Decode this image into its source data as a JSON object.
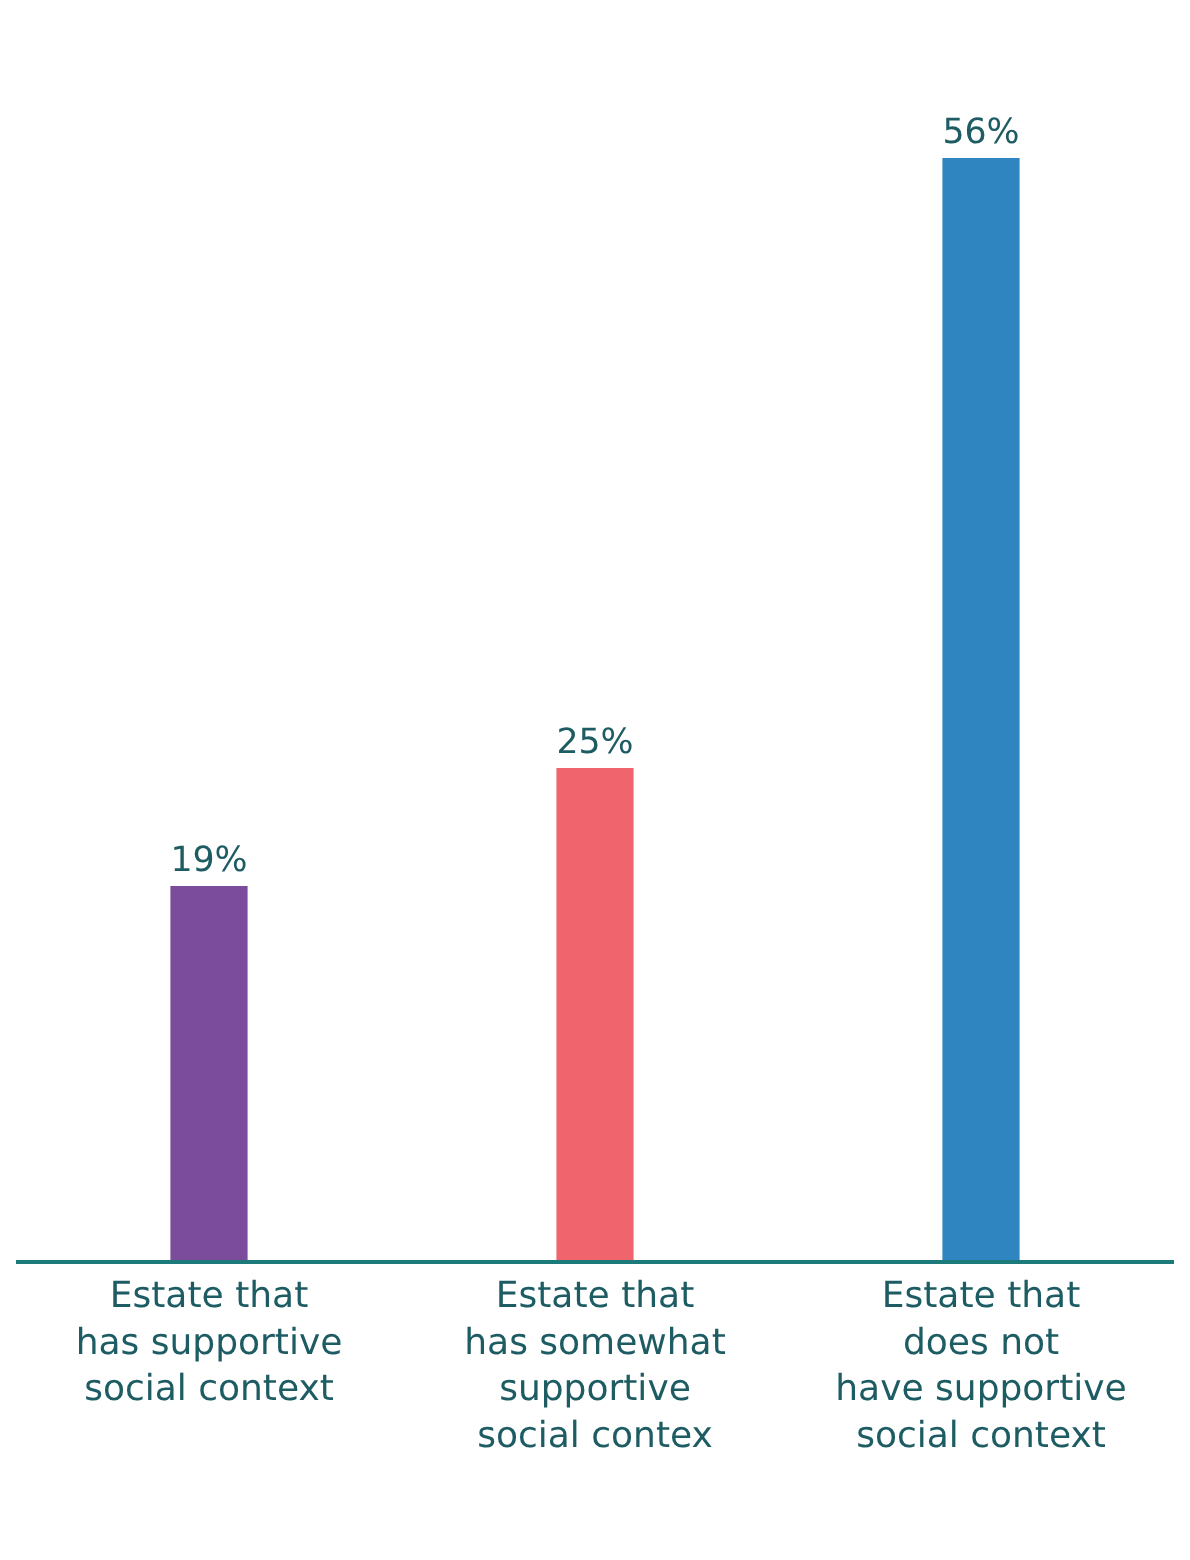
{
  "chart_data": {
    "type": "bar",
    "categories": [
      "Estate that\nhas supportive\nsocial context",
      "Estate that\nhas somewhat\nsupportive\nsocial contex",
      "Estate that\ndoes not\nhave supportive\nsocial context"
    ],
    "values": [
      19,
      25,
      56
    ],
    "colors": [
      "#7b4c9c",
      "#f0646e",
      "#2e85c0"
    ],
    "value_labels": [
      "19%",
      "25%",
      "56%"
    ]
  }
}
